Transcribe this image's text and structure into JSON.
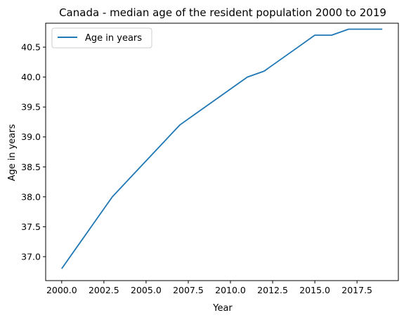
{
  "chart_data": {
    "type": "line",
    "title": "Canada - median age of the resident population 2000 to 2019",
    "xlabel": "Year",
    "ylabel": "Age in years",
    "x": [
      2000,
      2001,
      2002,
      2003,
      2004,
      2005,
      2006,
      2007,
      2008,
      2009,
      2010,
      2011,
      2012,
      2013,
      2014,
      2015,
      2016,
      2017,
      2018,
      2019
    ],
    "series": [
      {
        "name": "Age in years",
        "color": "#1f77b4",
        "values": [
          36.8,
          37.2,
          37.6,
          38.0,
          38.3,
          38.6,
          38.9,
          39.2,
          39.4,
          39.6,
          39.8,
          40.0,
          40.1,
          40.3,
          40.5,
          40.7,
          40.7,
          40.8,
          40.8,
          40.8
        ]
      }
    ],
    "xlim": [
      1999.05,
      2019.95
    ],
    "ylim": [
      36.6,
      40.9
    ],
    "xticks": [
      2000.0,
      2002.5,
      2005.0,
      2007.5,
      2010.0,
      2012.5,
      2015.0,
      2017.5
    ],
    "xtick_labels": [
      "2000.0",
      "2002.5",
      "2005.0",
      "2007.5",
      "2010.0",
      "2012.5",
      "2015.0",
      "2017.5"
    ],
    "yticks": [
      37.0,
      37.5,
      38.0,
      38.5,
      39.0,
      39.5,
      40.0,
      40.5
    ],
    "ytick_labels": [
      "37.0",
      "37.5",
      "38.0",
      "38.5",
      "39.0",
      "39.5",
      "40.0",
      "40.5"
    ],
    "grid": false,
    "legend": "top-left"
  }
}
